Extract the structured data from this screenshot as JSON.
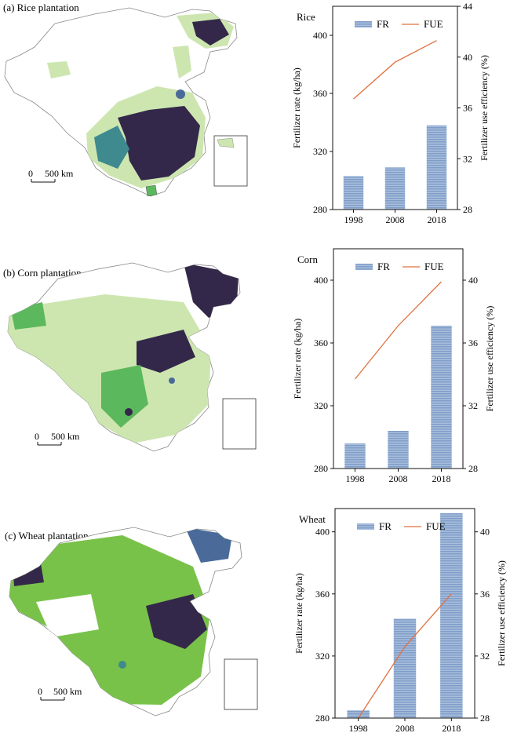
{
  "panels": [
    {
      "label": "(a) Rice plantation",
      "scale_zero": "0",
      "scale_text": "500 km"
    },
    {
      "label": "(b) Corn plantation",
      "scale_zero": "0",
      "scale_text": "500 km"
    },
    {
      "label": "(c) Wheat plantation",
      "scale_zero": "0",
      "scale_text": "500 km"
    }
  ],
  "colors": {
    "bar": "#7f9dc9",
    "bar_stripe": "#a9bfdc",
    "line": "#e0703e",
    "map_light": "#cde6b0",
    "map_mid": "#5cb85c",
    "map_green": "#79c24a",
    "map_teal": "#3e8a8f",
    "map_blue": "#4a6a9a",
    "map_dark": "#34284a"
  },
  "chart_data": [
    {
      "type": "bar",
      "title": "Rice",
      "categories": [
        "1998",
        "2008",
        "2018"
      ],
      "series": [
        {
          "name": "FR",
          "type": "bar",
          "axis": "left",
          "values": [
            303,
            309,
            338
          ]
        },
        {
          "name": "FUE",
          "type": "line",
          "axis": "right",
          "values": [
            36.7,
            39.6,
            41.3
          ]
        }
      ],
      "ylabel": "Fertilizer rate (kg/ha)",
      "y2label": "Fertilizer use efficiency (%)",
      "ylim": [
        280,
        420
      ],
      "yticks": [
        280,
        320,
        360,
        400
      ],
      "y2lim": [
        28,
        44
      ],
      "y2ticks": [
        28,
        32,
        36,
        40,
        44
      ],
      "legend": "top"
    },
    {
      "type": "bar",
      "title": "Corn",
      "categories": [
        "1998",
        "2008",
        "2018"
      ],
      "series": [
        {
          "name": "FR",
          "type": "bar",
          "axis": "left",
          "values": [
            296,
            304,
            371
          ]
        },
        {
          "name": "FUE",
          "type": "line",
          "axis": "right",
          "values": [
            33.7,
            37.1,
            39.9
          ]
        }
      ],
      "ylabel": "Fertilizer rate (kg/ha)",
      "y2label": "Fertilizer use efficiency (%)",
      "ylim": [
        280,
        420
      ],
      "yticks": [
        280,
        320,
        360,
        400
      ],
      "y2lim": [
        28,
        42
      ],
      "y2ticks": [
        28,
        32,
        36,
        40
      ],
      "legend": "top"
    },
    {
      "type": "bar",
      "title": "Wheat",
      "categories": [
        "1998",
        "2008",
        "2018"
      ],
      "series": [
        {
          "name": "FR",
          "type": "bar",
          "axis": "left",
          "values": [
            285,
            344,
            412
          ]
        },
        {
          "name": "FUE",
          "type": "line",
          "axis": "right",
          "values": [
            28.0,
            32.6,
            36.0
          ]
        }
      ],
      "ylabel": "Fertilizer rate (kg/ha)",
      "y2label": "Fertilizer use efficiency (%)",
      "ylim": [
        280,
        415
      ],
      "yticks": [
        280,
        320,
        360,
        400
      ],
      "y2lim": [
        28,
        41.5
      ],
      "y2ticks": [
        28,
        32,
        36,
        40
      ],
      "legend": "top"
    }
  ]
}
